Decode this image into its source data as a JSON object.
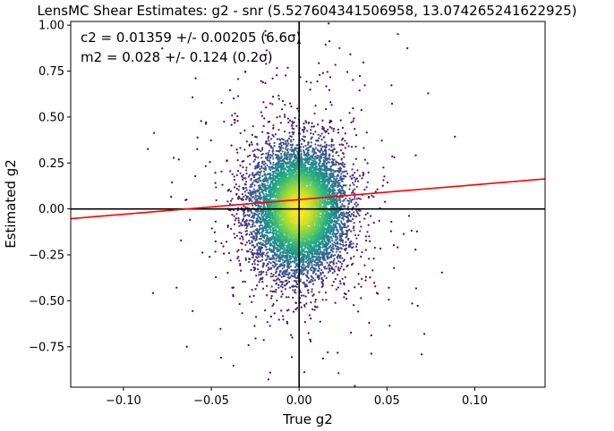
{
  "chart_data": {
    "type": "scatter",
    "title": "LensMC Shear Estimates: g2  - snr (5.527604341506958, 13.074265241622925)",
    "xlabel": "True g2",
    "ylabel": "Estimated g2",
    "xlim": [
      -0.13,
      0.14
    ],
    "ylim": [
      -0.97,
      1.02
    ],
    "xticks": [
      -0.1,
      -0.05,
      0.0,
      0.05,
      0.1
    ],
    "xtick_labels": [
      "−0.10",
      "−0.05",
      "0.00",
      "0.05",
      "0.10"
    ],
    "yticks": [
      -0.75,
      -0.5,
      -0.25,
      0.0,
      0.25,
      0.5,
      0.75,
      1.0
    ],
    "ytick_labels": [
      "−0.75",
      "−0.50",
      "−0.25",
      "0.00",
      "0.25",
      "0.50",
      "0.75",
      "1.00"
    ],
    "annotations": [
      "c2 = 0.01359 +/- 0.00205 (6.6σ)",
      "m2 = 0.028 +/- 0.124 (0.2σ)"
    ],
    "fit_line": {
      "slope": 1.028,
      "intercept": 0.01359,
      "color": "#ff0000"
    },
    "reference_lines": {
      "x": 0.0,
      "y": 0.0,
      "color": "#000000"
    },
    "colormap": "viridis",
    "density_colored": true,
    "distribution": {
      "x_center": 0.0,
      "x_std": 0.013,
      "y_center": 0.0,
      "y_std": 0.17,
      "n_points": 9000
    },
    "grid": false,
    "legend": false
  }
}
